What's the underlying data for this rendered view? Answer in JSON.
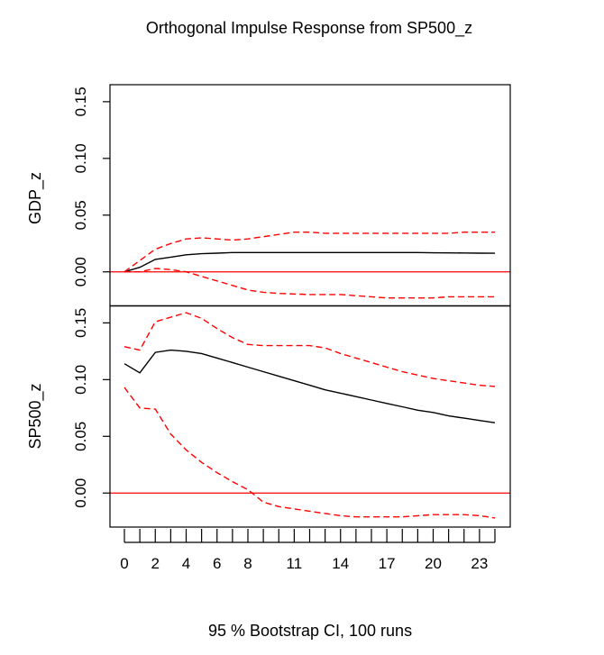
{
  "title": "Orthogonal Impulse Response from SP500_z",
  "footer": "95 % Bootstrap CI,  100 runs",
  "colors": {
    "response": "#000000",
    "ci": "#ff0000",
    "zero_line": "#ff0000",
    "frame": "#000000"
  },
  "x_ticks": [
    0,
    2,
    4,
    6,
    8,
    11,
    14,
    17,
    20,
    23
  ],
  "x_tick_labels": [
    "0",
    "2",
    "4",
    "6",
    "8",
    "11",
    "14",
    "17",
    "20",
    "23"
  ],
  "chart_data": [
    {
      "type": "line",
      "ylabel": "GDP_z",
      "xlim": [
        0,
        24
      ],
      "ylim": [
        -0.03,
        0.165
      ],
      "y_ticks": [
        0.0,
        0.05,
        0.1,
        0.15
      ],
      "y_tick_labels": [
        "0.00",
        "0.05",
        "0.10",
        "0.15"
      ],
      "grid": false,
      "x": [
        0,
        1,
        2,
        3,
        4,
        5,
        6,
        7,
        8,
        9,
        10,
        11,
        12,
        13,
        14,
        15,
        16,
        17,
        18,
        19,
        20,
        21,
        22,
        23,
        24
      ],
      "series": [
        {
          "role": "response",
          "style": "solid",
          "values": [
            0.0,
            0.004,
            0.011,
            0.013,
            0.015,
            0.016,
            0.0165,
            0.017,
            0.017,
            0.017,
            0.017,
            0.017,
            0.017,
            0.017,
            0.017,
            0.017,
            0.017,
            0.017,
            0.017,
            0.017,
            0.0168,
            0.0167,
            0.0166,
            0.0165,
            0.0164
          ]
        },
        {
          "role": "upper_ci",
          "style": "dashed",
          "values": [
            0.0,
            0.01,
            0.02,
            0.025,
            0.029,
            0.03,
            0.029,
            0.028,
            0.029,
            0.031,
            0.033,
            0.035,
            0.035,
            0.034,
            0.034,
            0.034,
            0.034,
            0.034,
            0.034,
            0.034,
            0.034,
            0.034,
            0.035,
            0.035,
            0.035
          ]
        },
        {
          "role": "lower_ci",
          "style": "dashed",
          "values": [
            0.0,
            0.0,
            0.003,
            0.002,
            0.0,
            -0.004,
            -0.008,
            -0.012,
            -0.016,
            -0.018,
            -0.019,
            -0.0195,
            -0.02,
            -0.02,
            -0.02,
            -0.021,
            -0.022,
            -0.023,
            -0.023,
            -0.023,
            -0.023,
            -0.022,
            -0.022,
            -0.022,
            -0.022
          ]
        }
      ],
      "hline": 0.0
    },
    {
      "type": "line",
      "ylabel": "SP500_z",
      "xlim": [
        0,
        24
      ],
      "ylim": [
        -0.03,
        0.165
      ],
      "y_ticks": [
        0.0,
        0.05,
        0.1,
        0.15
      ],
      "y_tick_labels": [
        "0.00",
        "0.05",
        "0.10",
        "0.15"
      ],
      "grid": false,
      "x": [
        0,
        1,
        2,
        3,
        4,
        5,
        6,
        7,
        8,
        9,
        10,
        11,
        12,
        13,
        14,
        15,
        16,
        17,
        18,
        19,
        20,
        21,
        22,
        23,
        24
      ],
      "series": [
        {
          "role": "response",
          "style": "solid",
          "values": [
            0.114,
            0.106,
            0.124,
            0.126,
            0.125,
            0.123,
            0.119,
            0.115,
            0.111,
            0.107,
            0.103,
            0.099,
            0.095,
            0.091,
            0.088,
            0.085,
            0.082,
            0.079,
            0.076,
            0.073,
            0.071,
            0.068,
            0.066,
            0.064,
            0.062
          ]
        },
        {
          "role": "upper_ci",
          "style": "dashed",
          "values": [
            0.129,
            0.126,
            0.151,
            0.155,
            0.159,
            0.154,
            0.145,
            0.137,
            0.131,
            0.13,
            0.13,
            0.13,
            0.13,
            0.128,
            0.123,
            0.119,
            0.115,
            0.111,
            0.107,
            0.104,
            0.101,
            0.099,
            0.097,
            0.095,
            0.094
          ]
        },
        {
          "role": "lower_ci",
          "style": "dashed",
          "values": [
            0.093,
            0.075,
            0.074,
            0.052,
            0.038,
            0.027,
            0.018,
            0.01,
            0.003,
            -0.008,
            -0.012,
            -0.014,
            -0.016,
            -0.018,
            -0.02,
            -0.021,
            -0.021,
            -0.021,
            -0.021,
            -0.02,
            -0.019,
            -0.019,
            -0.019,
            -0.02,
            -0.022
          ]
        }
      ],
      "hline": 0.0
    }
  ]
}
